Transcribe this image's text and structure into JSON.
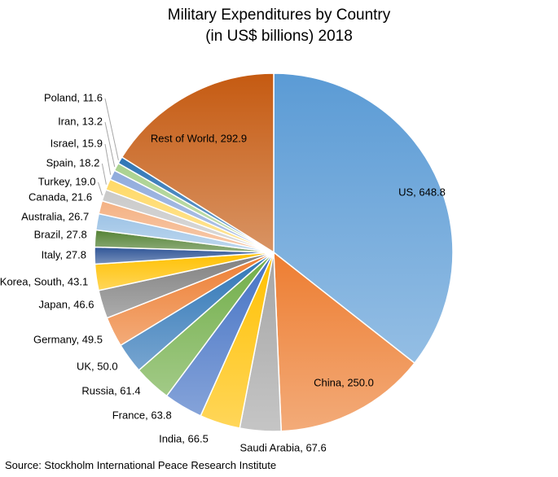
{
  "chart_data": {
    "type": "pie",
    "title": [
      "Military Expenditures by Country",
      "(in US$ billions) 2018"
    ],
    "source": "Source: Stockholm International Peace Research Institute",
    "slices": [
      {
        "name": "US",
        "value": 648.8,
        "label": "US, 648.8",
        "color": "#5b9bd5",
        "label_side": "inside"
      },
      {
        "name": "China",
        "value": 250.0,
        "label": "China, 250.0",
        "color": "#ed7d31",
        "label_side": "inside"
      },
      {
        "name": "Saudi Arabia",
        "value": 67.6,
        "label": "Saudi Arabia, 67.6",
        "color": "#a5a5a5",
        "label_side": "below"
      },
      {
        "name": "India",
        "value": 66.5,
        "label": "India, 66.5",
        "color": "#ffc000",
        "label_side": "left"
      },
      {
        "name": "France",
        "value": 63.8,
        "label": "France, 63.8",
        "color": "#4472c4",
        "label_side": "left"
      },
      {
        "name": "Russia",
        "value": 61.4,
        "label": "Russia, 61.4",
        "color": "#70ad47",
        "label_side": "left"
      },
      {
        "name": "UK",
        "value": 50.0,
        "label": "UK, 50.0",
        "color": "#2e75b6",
        "label_side": "left"
      },
      {
        "name": "Germany",
        "value": 49.5,
        "label": "Germany, 49.5",
        "color": "#ed7d31",
        "label_side": "left"
      },
      {
        "name": "Japan",
        "value": 46.6,
        "label": "Japan, 46.6",
        "color": "#7f7f7f",
        "label_side": "left"
      },
      {
        "name": "Korea, South",
        "value": 43.1,
        "label": "Korea, South, 43.1",
        "color": "#ffc000",
        "label_side": "left"
      },
      {
        "name": "Italy",
        "value": 27.8,
        "label": "Italy, 27.8",
        "color": "#2f5597",
        "label_side": "left"
      },
      {
        "name": "Brazil",
        "value": 27.8,
        "label": "Brazil, 27.8",
        "color": "#548235",
        "label_side": "left"
      },
      {
        "name": "Australia",
        "value": 26.7,
        "label": "Australia, 26.7",
        "color": "#9dc3e6",
        "label_side": "left"
      },
      {
        "name": "Canada",
        "value": 21.6,
        "label": "Canada, 21.6",
        "color": "#f4b183",
        "label_side": "left"
      },
      {
        "name": "Turkey",
        "value": 19.0,
        "label": "Turkey, 19.0",
        "color": "#c9c9c9",
        "label_side": "left"
      },
      {
        "name": "Spain",
        "value": 18.2,
        "label": "Spain, 18.2",
        "color": "#ffd966",
        "label_side": "left"
      },
      {
        "name": "Israel",
        "value": 15.9,
        "label": "Israel, 15.9",
        "color": "#8faadc",
        "label_side": "left"
      },
      {
        "name": "Iran",
        "value": 13.2,
        "label": "Iran, 13.2",
        "color": "#a9d18e",
        "label_side": "left"
      },
      {
        "name": "Poland",
        "value": 11.6,
        "label": "Poland, 11.6",
        "color": "#2e75b6",
        "label_side": "left"
      },
      {
        "name": "Rest of World",
        "value": 292.9,
        "label": "Rest of World, 292.9",
        "color": "#c55a11",
        "label_side": "inside"
      }
    ]
  }
}
